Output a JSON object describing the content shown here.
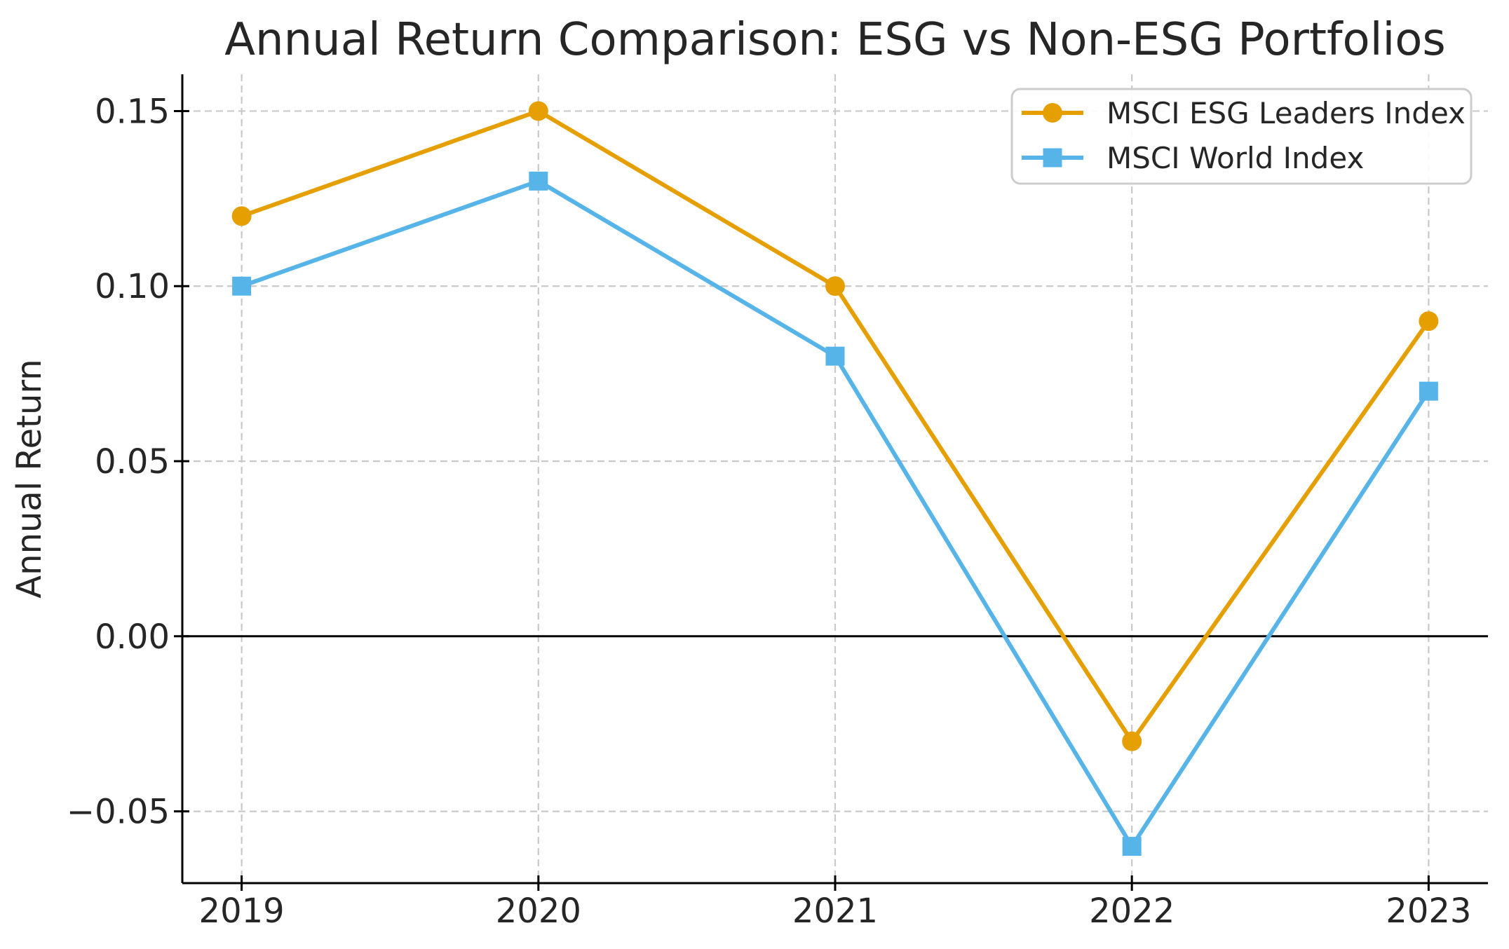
{
  "chart_data": {
    "type": "line",
    "title": "Annual Return Comparison: ESG vs Non-ESG Portfolios",
    "xlabel": "",
    "ylabel": "Annual Return",
    "x": [
      2019,
      2020,
      2021,
      2022,
      2023
    ],
    "x_tick_labels": [
      "2019",
      "2020",
      "2021",
      "2022",
      "2023"
    ],
    "y_ticks": [
      -0.05,
      0.0,
      0.05,
      0.1,
      0.15
    ],
    "y_tick_labels": [
      "−0.05",
      "0.00",
      "0.05",
      "0.10",
      "0.15"
    ],
    "xlim": [
      2018.8,
      2023.2
    ],
    "ylim": [
      -0.0705,
      0.1605
    ],
    "grid": true,
    "grid_style": "dashed",
    "zero_line": true,
    "legend": {
      "position": "upper-right",
      "entries": [
        "MSCI ESG Leaders Index",
        "MSCI World Index"
      ]
    },
    "series": [
      {
        "name": "MSCI ESG Leaders Index",
        "marker": "circle",
        "color": "#E69F00",
        "values": [
          0.12,
          0.15,
          0.1,
          -0.03,
          0.09
        ]
      },
      {
        "name": "MSCI World Index",
        "marker": "square",
        "color": "#56B4E9",
        "values": [
          0.1,
          0.13,
          0.08,
          -0.06,
          0.07
        ]
      }
    ],
    "colors": {
      "background": "#ffffff",
      "text": "#262626",
      "spine": "#000000",
      "grid": "#c9c9c9",
      "legend_border": "#cccccc"
    }
  }
}
